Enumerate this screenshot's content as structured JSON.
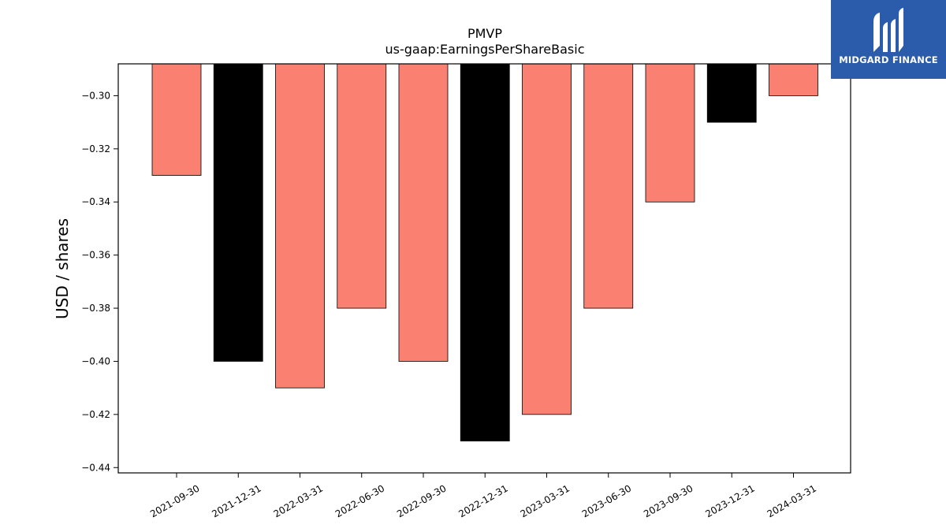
{
  "chart_data": {
    "type": "bar",
    "title": "PMVP",
    "subtitle": "us-gaap:EarningsPerShareBasic",
    "ylabel": "USD / shares",
    "xlabel": "",
    "categories": [
      "2021-09-30",
      "2021-12-31",
      "2022-03-31",
      "2022-06-30",
      "2022-09-30",
      "2022-12-31",
      "2023-03-31",
      "2023-06-30",
      "2023-09-30",
      "2023-12-31",
      "2024-03-31"
    ],
    "values": [
      -0.33,
      -0.4,
      -0.41,
      -0.38,
      -0.4,
      -0.43,
      -0.42,
      -0.38,
      -0.34,
      -0.31,
      -0.3
    ],
    "bar_colors": [
      "#fa8072",
      "#000000",
      "#fa8072",
      "#fa8072",
      "#fa8072",
      "#000000",
      "#fa8072",
      "#fa8072",
      "#fa8072",
      "#000000",
      "#fa8072"
    ],
    "ylim": [
      -0.442,
      -0.288
    ],
    "yticks": [
      "−0.30",
      "−0.32",
      "−0.34",
      "−0.36",
      "−0.38",
      "−0.40",
      "−0.42",
      "−0.44"
    ],
    "ytick_values": [
      -0.3,
      -0.32,
      -0.34,
      -0.36,
      -0.38,
      -0.4,
      -0.42,
      -0.44
    ],
    "grid": false,
    "legend": "none"
  },
  "logo": {
    "text": "MIDGARD FINANCE",
    "background": "#2b5bab"
  }
}
